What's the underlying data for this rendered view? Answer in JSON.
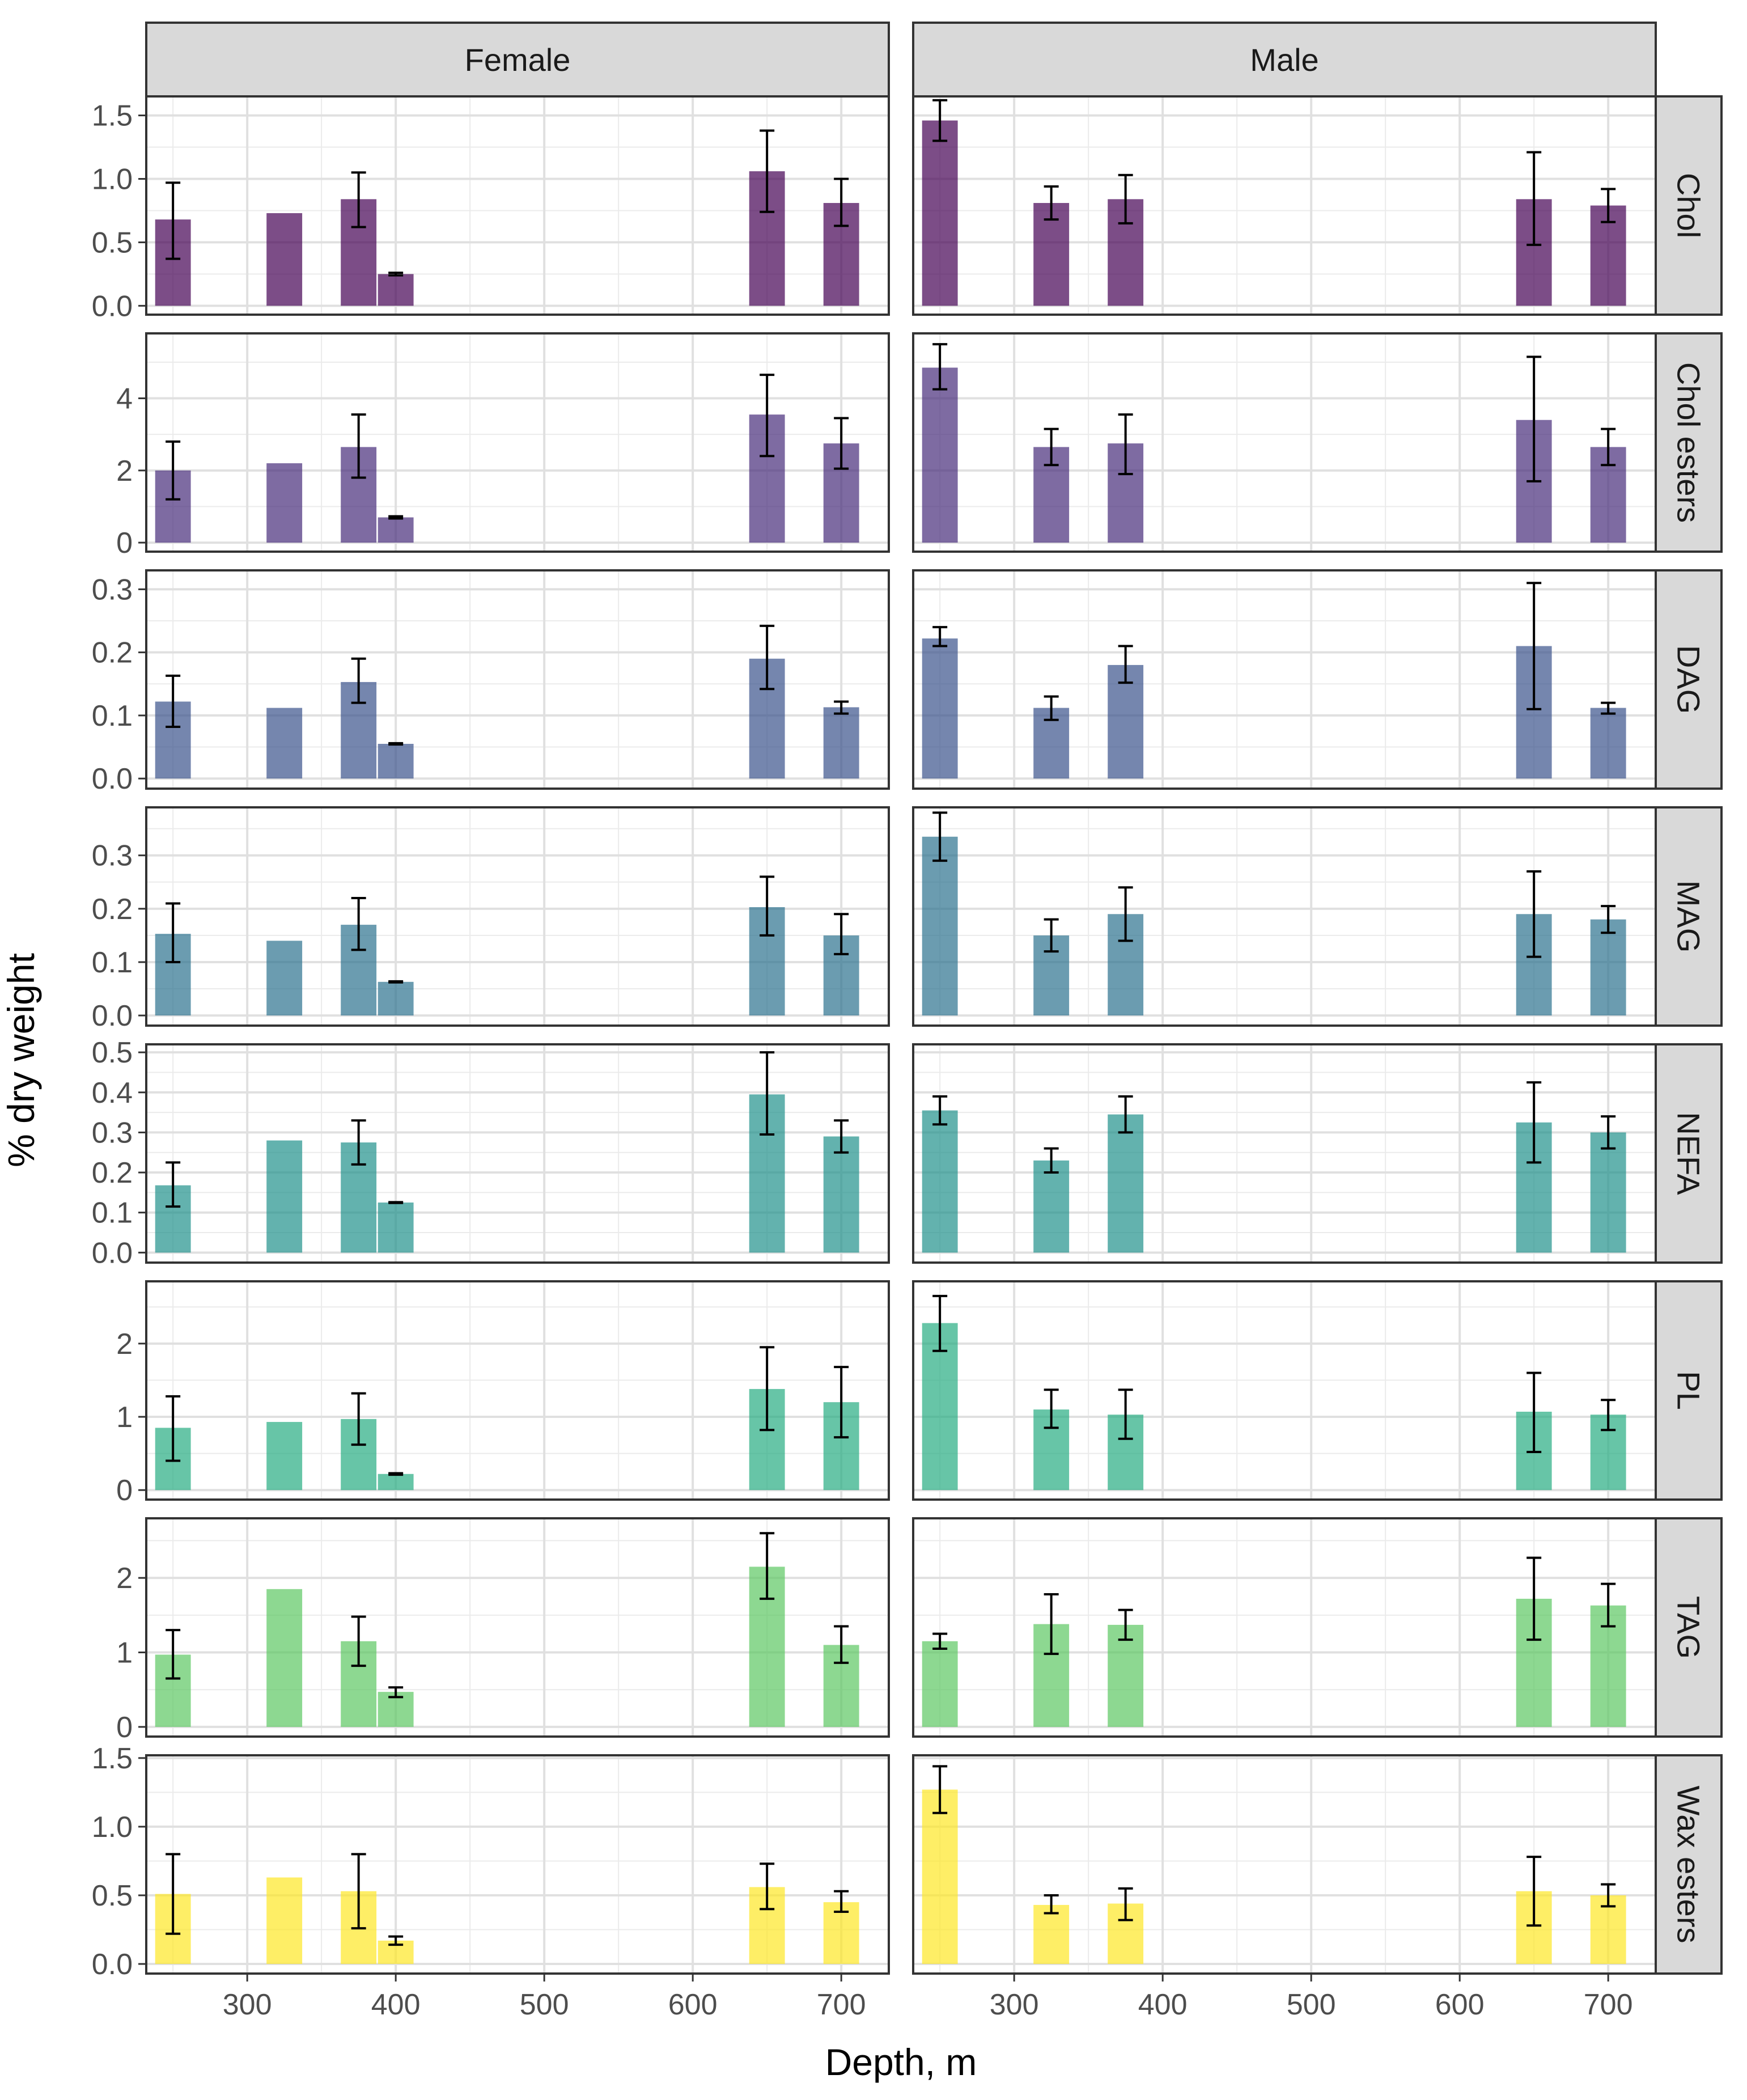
{
  "chart_data": {
    "type": "bar",
    "xlabel": "Depth, m",
    "ylabel": "% dry weight",
    "xlim": [
      232,
      732
    ],
    "x_ticks": [
      300,
      400,
      500,
      600,
      700
    ],
    "bar_width_m": 24,
    "columns": [
      "Female",
      "Male"
    ],
    "rows": [
      {
        "name": "Chol",
        "color": "#440154",
        "ylim": [
          -0.07,
          1.65
        ],
        "y_ticks": [
          0.0,
          0.5,
          1.0,
          1.5
        ],
        "y_tick_labels": [
          "0.0",
          "0.5",
          "1.0",
          "1.5"
        ],
        "series": [
          {
            "name": "Female",
            "points": [
              {
                "x": 250,
                "y": 0.68,
                "lo": 0.37,
                "hi": 0.97
              },
              {
                "x": 325,
                "y": 0.73
              },
              {
                "x": 375,
                "y": 0.84,
                "lo": 0.62,
                "hi": 1.05
              },
              {
                "x": 400,
                "y": 0.25,
                "lo": 0.24,
                "hi": 0.26
              },
              {
                "x": 650,
                "y": 1.06,
                "lo": 0.74,
                "hi": 1.38
              },
              {
                "x": 700,
                "y": 0.81,
                "lo": 0.63,
                "hi": 1.0
              }
            ]
          },
          {
            "name": "Male",
            "points": [
              {
                "x": 250,
                "y": 1.46,
                "lo": 1.3,
                "hi": 1.62
              },
              {
                "x": 325,
                "y": 0.81,
                "lo": 0.68,
                "hi": 0.94
              },
              {
                "x": 375,
                "y": 0.84,
                "lo": 0.65,
                "hi": 1.03
              },
              {
                "x": 650,
                "y": 0.84,
                "lo": 0.48,
                "hi": 1.21
              },
              {
                "x": 700,
                "y": 0.79,
                "lo": 0.66,
                "hi": 0.92
              }
            ]
          }
        ]
      },
      {
        "name": "Chol esters",
        "color": "#472c7a",
        "ylim": [
          -0.25,
          5.8
        ],
        "y_ticks": [
          0,
          2,
          4
        ],
        "y_tick_labels": [
          "0",
          "2",
          "4"
        ],
        "series": [
          {
            "name": "Female",
            "points": [
              {
                "x": 250,
                "y": 2.0,
                "lo": 1.2,
                "hi": 2.8
              },
              {
                "x": 325,
                "y": 2.2
              },
              {
                "x": 375,
                "y": 2.65,
                "lo": 1.8,
                "hi": 3.55
              },
              {
                "x": 400,
                "y": 0.7,
                "lo": 0.67,
                "hi": 0.73
              },
              {
                "x": 650,
                "y": 3.55,
                "lo": 2.4,
                "hi": 4.65
              },
              {
                "x": 700,
                "y": 2.75,
                "lo": 2.05,
                "hi": 3.45
              }
            ]
          },
          {
            "name": "Male",
            "points": [
              {
                "x": 250,
                "y": 4.85,
                "lo": 4.25,
                "hi": 5.5
              },
              {
                "x": 325,
                "y": 2.65,
                "lo": 2.15,
                "hi": 3.15
              },
              {
                "x": 375,
                "y": 2.75,
                "lo": 1.9,
                "hi": 3.55
              },
              {
                "x": 650,
                "y": 3.4,
                "lo": 1.7,
                "hi": 5.15
              },
              {
                "x": 700,
                "y": 2.65,
                "lo": 2.15,
                "hi": 3.15
              }
            ]
          }
        ]
      },
      {
        "name": "DAG",
        "color": "#3b528b",
        "ylim": [
          -0.016,
          0.33
        ],
        "y_ticks": [
          0.0,
          0.1,
          0.2,
          0.3
        ],
        "y_tick_labels": [
          "0.0",
          "0.1",
          "0.2",
          "0.3"
        ],
        "series": [
          {
            "name": "Female",
            "points": [
              {
                "x": 250,
                "y": 0.122,
                "lo": 0.082,
                "hi": 0.163
              },
              {
                "x": 325,
                "y": 0.112
              },
              {
                "x": 375,
                "y": 0.153,
                "lo": 0.12,
                "hi": 0.19
              },
              {
                "x": 400,
                "y": 0.055,
                "lo": 0.054,
                "hi": 0.056
              },
              {
                "x": 650,
                "y": 0.19,
                "lo": 0.142,
                "hi": 0.242
              },
              {
                "x": 700,
                "y": 0.113,
                "lo": 0.103,
                "hi": 0.122
              }
            ]
          },
          {
            "name": "Male",
            "points": [
              {
                "x": 250,
                "y": 0.222,
                "lo": 0.21,
                "hi": 0.24
              },
              {
                "x": 325,
                "y": 0.112,
                "lo": 0.093,
                "hi": 0.13
              },
              {
                "x": 375,
                "y": 0.18,
                "lo": 0.152,
                "hi": 0.21
              },
              {
                "x": 650,
                "y": 0.21,
                "lo": 0.11,
                "hi": 0.31
              },
              {
                "x": 700,
                "y": 0.112,
                "lo": 0.103,
                "hi": 0.12
              }
            ]
          }
        ]
      },
      {
        "name": "MAG",
        "color": "#2c728e",
        "ylim": [
          -0.019,
          0.39
        ],
        "y_ticks": [
          0.0,
          0.1,
          0.2,
          0.3
        ],
        "y_tick_labels": [
          "0.0",
          "0.1",
          "0.2",
          "0.3"
        ],
        "series": [
          {
            "name": "Female",
            "points": [
              {
                "x": 250,
                "y": 0.153,
                "lo": 0.1,
                "hi": 0.21
              },
              {
                "x": 325,
                "y": 0.14
              },
              {
                "x": 375,
                "y": 0.17,
                "lo": 0.123,
                "hi": 0.22
              },
              {
                "x": 400,
                "y": 0.063,
                "lo": 0.062,
                "hi": 0.064
              },
              {
                "x": 650,
                "y": 0.203,
                "lo": 0.15,
                "hi": 0.26
              },
              {
                "x": 700,
                "y": 0.15,
                "lo": 0.115,
                "hi": 0.19
              }
            ]
          },
          {
            "name": "Male",
            "points": [
              {
                "x": 250,
                "y": 0.335,
                "lo": 0.29,
                "hi": 0.38
              },
              {
                "x": 325,
                "y": 0.15,
                "lo": 0.12,
                "hi": 0.18
              },
              {
                "x": 375,
                "y": 0.19,
                "lo": 0.14,
                "hi": 0.24
              },
              {
                "x": 650,
                "y": 0.19,
                "lo": 0.11,
                "hi": 0.27
              },
              {
                "x": 700,
                "y": 0.18,
                "lo": 0.155,
                "hi": 0.205
              }
            ]
          }
        ]
      },
      {
        "name": "NEFA",
        "color": "#21918c",
        "ylim": [
          -0.025,
          0.52
        ],
        "y_ticks": [
          0.0,
          0.1,
          0.2,
          0.3,
          0.4,
          0.5
        ],
        "y_tick_labels": [
          "0.0",
          "0.1",
          "0.2",
          "0.3",
          "0.4",
          "0.5"
        ],
        "series": [
          {
            "name": "Female",
            "points": [
              {
                "x": 250,
                "y": 0.168,
                "lo": 0.115,
                "hi": 0.225
              },
              {
                "x": 325,
                "y": 0.28
              },
              {
                "x": 375,
                "y": 0.275,
                "lo": 0.22,
                "hi": 0.33
              },
              {
                "x": 400,
                "y": 0.125,
                "lo": 0.124,
                "hi": 0.126
              },
              {
                "x": 650,
                "y": 0.395,
                "lo": 0.295,
                "hi": 0.5
              },
              {
                "x": 700,
                "y": 0.29,
                "lo": 0.25,
                "hi": 0.33
              }
            ]
          },
          {
            "name": "Male",
            "points": [
              {
                "x": 250,
                "y": 0.355,
                "lo": 0.32,
                "hi": 0.39
              },
              {
                "x": 325,
                "y": 0.23,
                "lo": 0.2,
                "hi": 0.26
              },
              {
                "x": 375,
                "y": 0.345,
                "lo": 0.3,
                "hi": 0.39
              },
              {
                "x": 650,
                "y": 0.325,
                "lo": 0.225,
                "hi": 0.425
              },
              {
                "x": 700,
                "y": 0.3,
                "lo": 0.26,
                "hi": 0.34
              }
            ]
          }
        ]
      },
      {
        "name": "PL",
        "color": "#27ad81",
        "ylim": [
          -0.13,
          2.85
        ],
        "y_ticks": [
          0,
          1,
          2
        ],
        "y_tick_labels": [
          "0",
          "1",
          "2"
        ],
        "series": [
          {
            "name": "Female",
            "points": [
              {
                "x": 250,
                "y": 0.85,
                "lo": 0.4,
                "hi": 1.28
              },
              {
                "x": 325,
                "y": 0.93
              },
              {
                "x": 375,
                "y": 0.97,
                "lo": 0.62,
                "hi": 1.32
              },
              {
                "x": 400,
                "y": 0.22,
                "lo": 0.21,
                "hi": 0.23
              },
              {
                "x": 650,
                "y": 1.38,
                "lo": 0.82,
                "hi": 1.95
              },
              {
                "x": 700,
                "y": 1.2,
                "lo": 0.72,
                "hi": 1.68
              }
            ]
          },
          {
            "name": "Male",
            "points": [
              {
                "x": 250,
                "y": 2.28,
                "lo": 1.9,
                "hi": 2.65
              },
              {
                "x": 325,
                "y": 1.1,
                "lo": 0.85,
                "hi": 1.37
              },
              {
                "x": 375,
                "y": 1.03,
                "lo": 0.7,
                "hi": 1.37
              },
              {
                "x": 650,
                "y": 1.07,
                "lo": 0.52,
                "hi": 1.6
              },
              {
                "x": 700,
                "y": 1.03,
                "lo": 0.82,
                "hi": 1.23
              }
            ]
          }
        ]
      },
      {
        "name": "TAG",
        "color": "#5dc863",
        "ylim": [
          -0.13,
          2.8
        ],
        "y_ticks": [
          0,
          1,
          2
        ],
        "y_tick_labels": [
          "0",
          "1",
          "2"
        ],
        "series": [
          {
            "name": "Female",
            "points": [
              {
                "x": 250,
                "y": 0.97,
                "lo": 0.65,
                "hi": 1.3
              },
              {
                "x": 325,
                "y": 1.85
              },
              {
                "x": 375,
                "y": 1.15,
                "lo": 0.82,
                "hi": 1.48
              },
              {
                "x": 400,
                "y": 0.47,
                "lo": 0.4,
                "hi": 0.53
              },
              {
                "x": 650,
                "y": 2.15,
                "lo": 1.72,
                "hi": 2.6
              },
              {
                "x": 700,
                "y": 1.1,
                "lo": 0.86,
                "hi": 1.35
              }
            ]
          },
          {
            "name": "Male",
            "points": [
              {
                "x": 250,
                "y": 1.15,
                "lo": 1.05,
                "hi": 1.25
              },
              {
                "x": 325,
                "y": 1.38,
                "lo": 0.98,
                "hi": 1.78
              },
              {
                "x": 375,
                "y": 1.37,
                "lo": 1.17,
                "hi": 1.57
              },
              {
                "x": 650,
                "y": 1.72,
                "lo": 1.17,
                "hi": 2.27
              },
              {
                "x": 700,
                "y": 1.63,
                "lo": 1.35,
                "hi": 1.92
              }
            ]
          }
        ]
      },
      {
        "name": "Wax esters",
        "color": "#fde725",
        "ylim": [
          -0.07,
          1.52
        ],
        "y_ticks": [
          0.0,
          0.5,
          1.0,
          1.5
        ],
        "y_tick_labels": [
          "0.0",
          "0.5",
          "1.0",
          "1.5"
        ],
        "series": [
          {
            "name": "Female",
            "points": [
              {
                "x": 250,
                "y": 0.51,
                "lo": 0.22,
                "hi": 0.8
              },
              {
                "x": 325,
                "y": 0.63
              },
              {
                "x": 375,
                "y": 0.53,
                "lo": 0.26,
                "hi": 0.8
              },
              {
                "x": 400,
                "y": 0.17,
                "lo": 0.14,
                "hi": 0.2
              },
              {
                "x": 650,
                "y": 0.56,
                "lo": 0.4,
                "hi": 0.73
              },
              {
                "x": 700,
                "y": 0.45,
                "lo": 0.38,
                "hi": 0.53
              }
            ]
          },
          {
            "name": "Male",
            "points": [
              {
                "x": 250,
                "y": 1.27,
                "lo": 1.1,
                "hi": 1.44
              },
              {
                "x": 325,
                "y": 0.43,
                "lo": 0.37,
                "hi": 0.5
              },
              {
                "x": 375,
                "y": 0.44,
                "lo": 0.32,
                "hi": 0.55
              },
              {
                "x": 650,
                "y": 0.53,
                "lo": 0.28,
                "hi": 0.78
              },
              {
                "x": 700,
                "y": 0.5,
                "lo": 0.42,
                "hi": 0.58
              }
            ]
          }
        ]
      }
    ]
  }
}
